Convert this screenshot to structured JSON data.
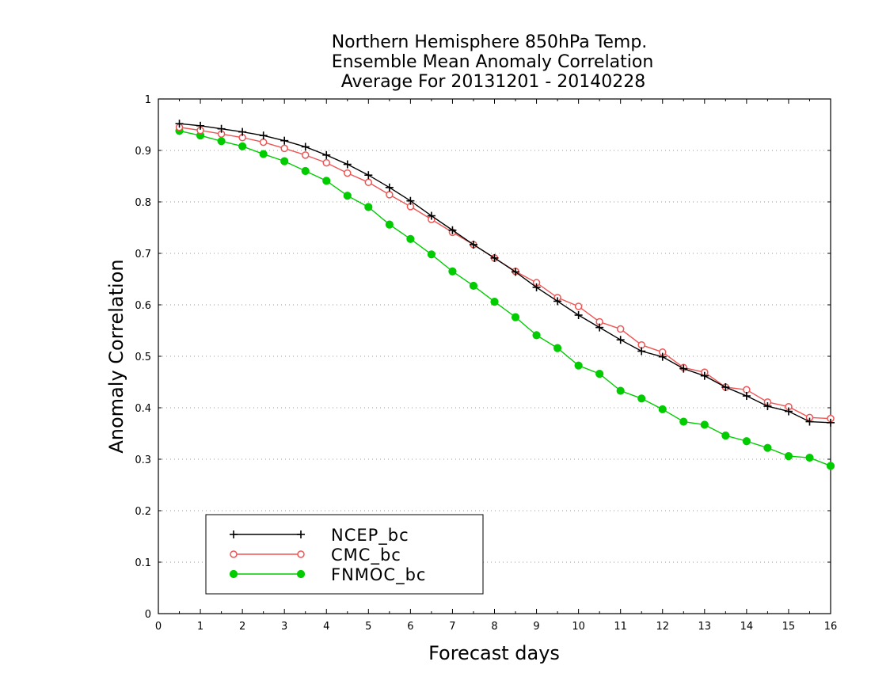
{
  "chart_data": {
    "type": "line",
    "title_lines": [
      "Northern Hemisphere 850hPa Temp.",
      "Ensemble Mean Anomaly Correlation",
      "Average For 20131201 - 20140228"
    ],
    "xlabel": "Forecast days",
    "ylabel": "Anomaly Correlation",
    "xlim": [
      0,
      16
    ],
    "ylim": [
      0,
      1
    ],
    "x_ticks": [
      0,
      1,
      2,
      3,
      4,
      5,
      6,
      7,
      8,
      9,
      10,
      11,
      12,
      13,
      14,
      15,
      16
    ],
    "y_ticks": [
      0,
      0.1,
      0.2,
      0.3,
      0.4,
      0.5,
      0.6,
      0.7,
      0.8,
      0.9,
      1
    ],
    "y_tick_labels": [
      "0",
      "0.1",
      "0.2",
      "0.3",
      "0.4",
      "0.5",
      "0.6",
      "0.7",
      "0.8",
      "0.9",
      "1"
    ],
    "grid": "horizontal dotted",
    "legend_position": "bottom-left",
    "x": [
      0.5,
      1,
      1.5,
      2,
      2.5,
      3,
      3.5,
      4,
      4.5,
      5,
      5.5,
      6,
      6.5,
      7,
      7.5,
      8,
      8.5,
      9,
      9.5,
      10,
      10.5,
      11,
      11.5,
      12,
      12.5,
      13,
      13.5,
      14,
      14.5,
      15,
      15.5,
      16
    ],
    "series": [
      {
        "name": "NCEP_bc",
        "color": "#000000",
        "marker": "plus",
        "values": [
          0.952,
          0.948,
          0.942,
          0.936,
          0.929,
          0.919,
          0.907,
          0.891,
          0.873,
          0.852,
          0.828,
          0.802,
          0.773,
          0.745,
          0.717,
          0.691,
          0.664,
          0.634,
          0.607,
          0.58,
          0.556,
          0.532,
          0.51,
          0.499,
          0.476,
          0.462,
          0.44,
          0.423,
          0.403,
          0.393,
          0.373,
          0.371
        ]
      },
      {
        "name": "CMC_bc",
        "color": "#ee5555",
        "marker": "open-circle",
        "values": [
          0.945,
          0.939,
          0.932,
          0.925,
          0.916,
          0.904,
          0.891,
          0.876,
          0.856,
          0.838,
          0.814,
          0.791,
          0.766,
          0.741,
          0.717,
          0.691,
          0.665,
          0.643,
          0.614,
          0.597,
          0.567,
          0.553,
          0.522,
          0.508,
          0.478,
          0.469,
          0.44,
          0.435,
          0.411,
          0.402,
          0.381,
          0.379
        ]
      },
      {
        "name": "FNMOC_bc",
        "color": "#00cc00",
        "marker": "filled-circle",
        "values": [
          0.938,
          0.929,
          0.918,
          0.908,
          0.893,
          0.879,
          0.86,
          0.841,
          0.812,
          0.79,
          0.756,
          0.728,
          0.698,
          0.665,
          0.637,
          0.606,
          0.576,
          0.541,
          0.516,
          0.482,
          0.466,
          0.433,
          0.418,
          0.397,
          0.373,
          0.367,
          0.346,
          0.335,
          0.322,
          0.306,
          0.303,
          0.287
        ]
      }
    ]
  }
}
